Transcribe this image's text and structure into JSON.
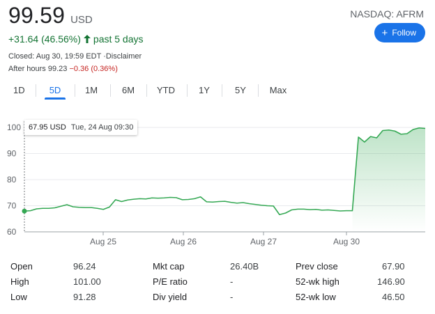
{
  "header": {
    "price": "99.59",
    "currency": "USD",
    "ticker": "NASDAQ: AFRM",
    "follow_label": "Follow",
    "change": "+31.64 (46.56%)",
    "change_period": "past 5 days",
    "closed_text": "Closed: Aug 30, 19:59 EDT ·Disclaimer",
    "afterhours_prefix": "After hours 99.23",
    "afterhours_change": "−0.36 (0.36%)",
    "colors": {
      "positive": "#137333",
      "negative": "#c5221f",
      "accent": "#1a73e8",
      "line": "#34a853"
    }
  },
  "tabs": [
    {
      "label": "1D",
      "active": false
    },
    {
      "label": "5D",
      "active": true
    },
    {
      "label": "1M",
      "active": false
    },
    {
      "label": "6M",
      "active": false
    },
    {
      "label": "YTD",
      "active": false
    },
    {
      "label": "1Y",
      "active": false
    },
    {
      "label": "5Y",
      "active": false
    },
    {
      "label": "Max",
      "active": false
    }
  ],
  "tooltip": {
    "value": "67.95 USD",
    "date": "Tue, 24 Aug 09:30"
  },
  "chart_data": {
    "type": "area",
    "y_ticks": [
      60,
      70,
      80,
      90,
      100
    ],
    "ylim": [
      60,
      101
    ],
    "x_ticks": [
      "Aug 25",
      "Aug 26",
      "Aug 27",
      "Aug 30"
    ],
    "grid": true,
    "series": [
      {
        "x": [
          0,
          1,
          2,
          3,
          4,
          5,
          6,
          7,
          8,
          9,
          10,
          11,
          12,
          13,
          14,
          15,
          16,
          17,
          18,
          19,
          20,
          21,
          22,
          23,
          24,
          25,
          26,
          27,
          28,
          29,
          30,
          31,
          32,
          33,
          34,
          35,
          36,
          37,
          38,
          39,
          40,
          41,
          42,
          43,
          44,
          45,
          46,
          47,
          48,
          49,
          50,
          51,
          52,
          53,
          54,
          55,
          56,
          57,
          58,
          59,
          60,
          61,
          62,
          63,
          64,
          65,
          66
        ],
        "values": [
          67.95,
          68.1,
          68.8,
          69.0,
          69.0,
          69.2,
          69.8,
          70.4,
          69.6,
          69.4,
          69.3,
          69.3,
          69.0,
          68.6,
          69.5,
          72.3,
          71.6,
          72.2,
          72.5,
          72.7,
          72.6,
          73.0,
          72.9,
          73.0,
          73.2,
          73.1,
          72.3,
          72.4,
          72.7,
          73.4,
          71.5,
          71.4,
          71.6,
          71.7,
          71.3,
          71.0,
          71.2,
          70.8,
          70.5,
          70.2,
          70.0,
          69.9,
          66.6,
          67.2,
          68.4,
          68.7,
          68.7,
          68.5,
          68.6,
          68.3,
          68.4,
          68.2,
          68.0,
          68.1,
          68.1,
          96.3,
          94.4,
          96.5,
          96.0,
          98.8,
          99.0,
          98.6,
          97.4,
          97.6,
          99.2,
          99.8,
          99.6
        ]
      }
    ]
  },
  "stats": {
    "col1": [
      {
        "label": "Open",
        "value": "96.24"
      },
      {
        "label": "High",
        "value": "101.00"
      },
      {
        "label": "Low",
        "value": "91.28"
      }
    ],
    "col2": [
      {
        "label": "Mkt cap",
        "value": "26.40B"
      },
      {
        "label": "P/E ratio",
        "value": "-"
      },
      {
        "label": "Div yield",
        "value": "-"
      }
    ],
    "col3": [
      {
        "label": "Prev close",
        "value": "67.90"
      },
      {
        "label": "52-wk high",
        "value": "146.90"
      },
      {
        "label": "52-wk low",
        "value": "46.50"
      }
    ]
  }
}
